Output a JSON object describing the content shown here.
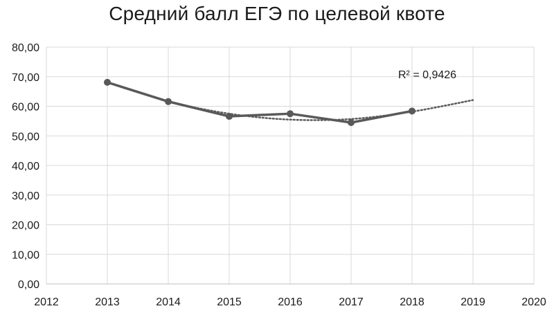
{
  "chart_data": {
    "type": "line",
    "title": "Средний балл ЕГЭ по целевой квоте",
    "xlabel": "",
    "ylabel": "",
    "x_ticks": [
      "2012",
      "2013",
      "2014",
      "2015",
      "2016",
      "2017",
      "2018",
      "2019",
      "2020"
    ],
    "y_ticks": [
      "0,00",
      "10,00",
      "20,00",
      "30,00",
      "40,00",
      "50,00",
      "60,00",
      "70,00",
      "80,00"
    ],
    "xlim": [
      2012,
      2020
    ],
    "ylim": [
      0,
      80
    ],
    "grid": true,
    "series": [
      {
        "x": [
          2013,
          2014,
          2015,
          2016,
          2017,
          2018
        ],
        "values": [
          68.1,
          61.6,
          56.6,
          57.5,
          54.5,
          58.4
        ],
        "color": "#595959"
      }
    ],
    "trendline": {
      "type": "polynomial",
      "x_range": [
        2013,
        2019
      ],
      "values_at_years": {
        "2013": 68.0,
        "2014": 61.7,
        "2015": 57.5,
        "2016": 55.5,
        "2017": 55.7,
        "2018": 58.2,
        "2019": 62.1
      },
      "color": "#595959",
      "style": "dotted",
      "annotation": "R² = 0,9426"
    }
  }
}
